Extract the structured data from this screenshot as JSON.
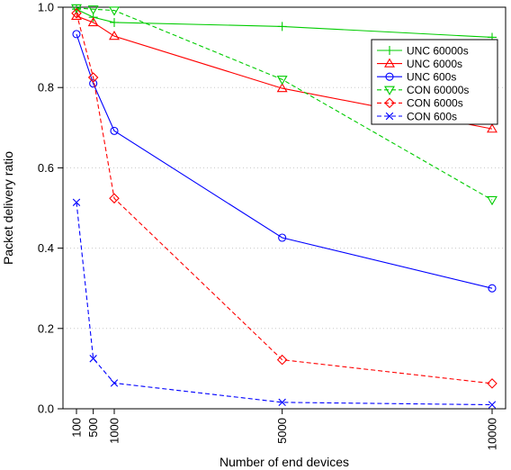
{
  "chart_data": {
    "type": "line",
    "title": "",
    "xlabel": "Number of end devices",
    "ylabel": "Packet delivery ratio",
    "x": [
      100,
      500,
      1000,
      5000,
      10000
    ],
    "x_tick_labels": [
      "100",
      "500",
      "1000",
      "5000",
      "10000"
    ],
    "y_ticks": [
      0.0,
      0.2,
      0.4,
      0.6,
      0.8,
      1.0
    ],
    "y_tick_labels": [
      "0.0",
      "0.2",
      "0.4",
      "0.6",
      "0.8",
      "1.0"
    ],
    "xlim": [
      100,
      10000
    ],
    "ylim": [
      0,
      1
    ],
    "grid": "horizontal dotted",
    "legend_position": "top-right",
    "series": [
      {
        "name": "UNC 60000s",
        "color": "#00cc00",
        "marker": "plus",
        "dash": "solid",
        "values": [
          0.995,
          0.975,
          0.962,
          0.952,
          0.925
        ]
      },
      {
        "name": "UNC 6000s",
        "color": "#ff0000",
        "marker": "triangle-up",
        "dash": "solid",
        "values": [
          0.978,
          0.962,
          0.928,
          0.798,
          0.697
        ]
      },
      {
        "name": "UNC 600s",
        "color": "#0000ff",
        "marker": "circle",
        "dash": "solid",
        "values": [
          0.933,
          0.81,
          0.692,
          0.426,
          0.3
        ]
      },
      {
        "name": "CON 60000s",
        "color": "#00cc00",
        "marker": "triangle-down",
        "dash": "dashed",
        "values": [
          0.998,
          0.995,
          0.992,
          0.82,
          0.52
        ]
      },
      {
        "name": "CON 6000s",
        "color": "#ff0000",
        "marker": "diamond",
        "dash": "dashed",
        "values": [
          0.985,
          0.825,
          0.524,
          0.122,
          0.063
        ]
      },
      {
        "name": "CON 600s",
        "color": "#0000ff",
        "marker": "x",
        "dash": "dashed",
        "values": [
          0.514,
          0.125,
          0.064,
          0.016,
          0.01
        ]
      }
    ]
  }
}
